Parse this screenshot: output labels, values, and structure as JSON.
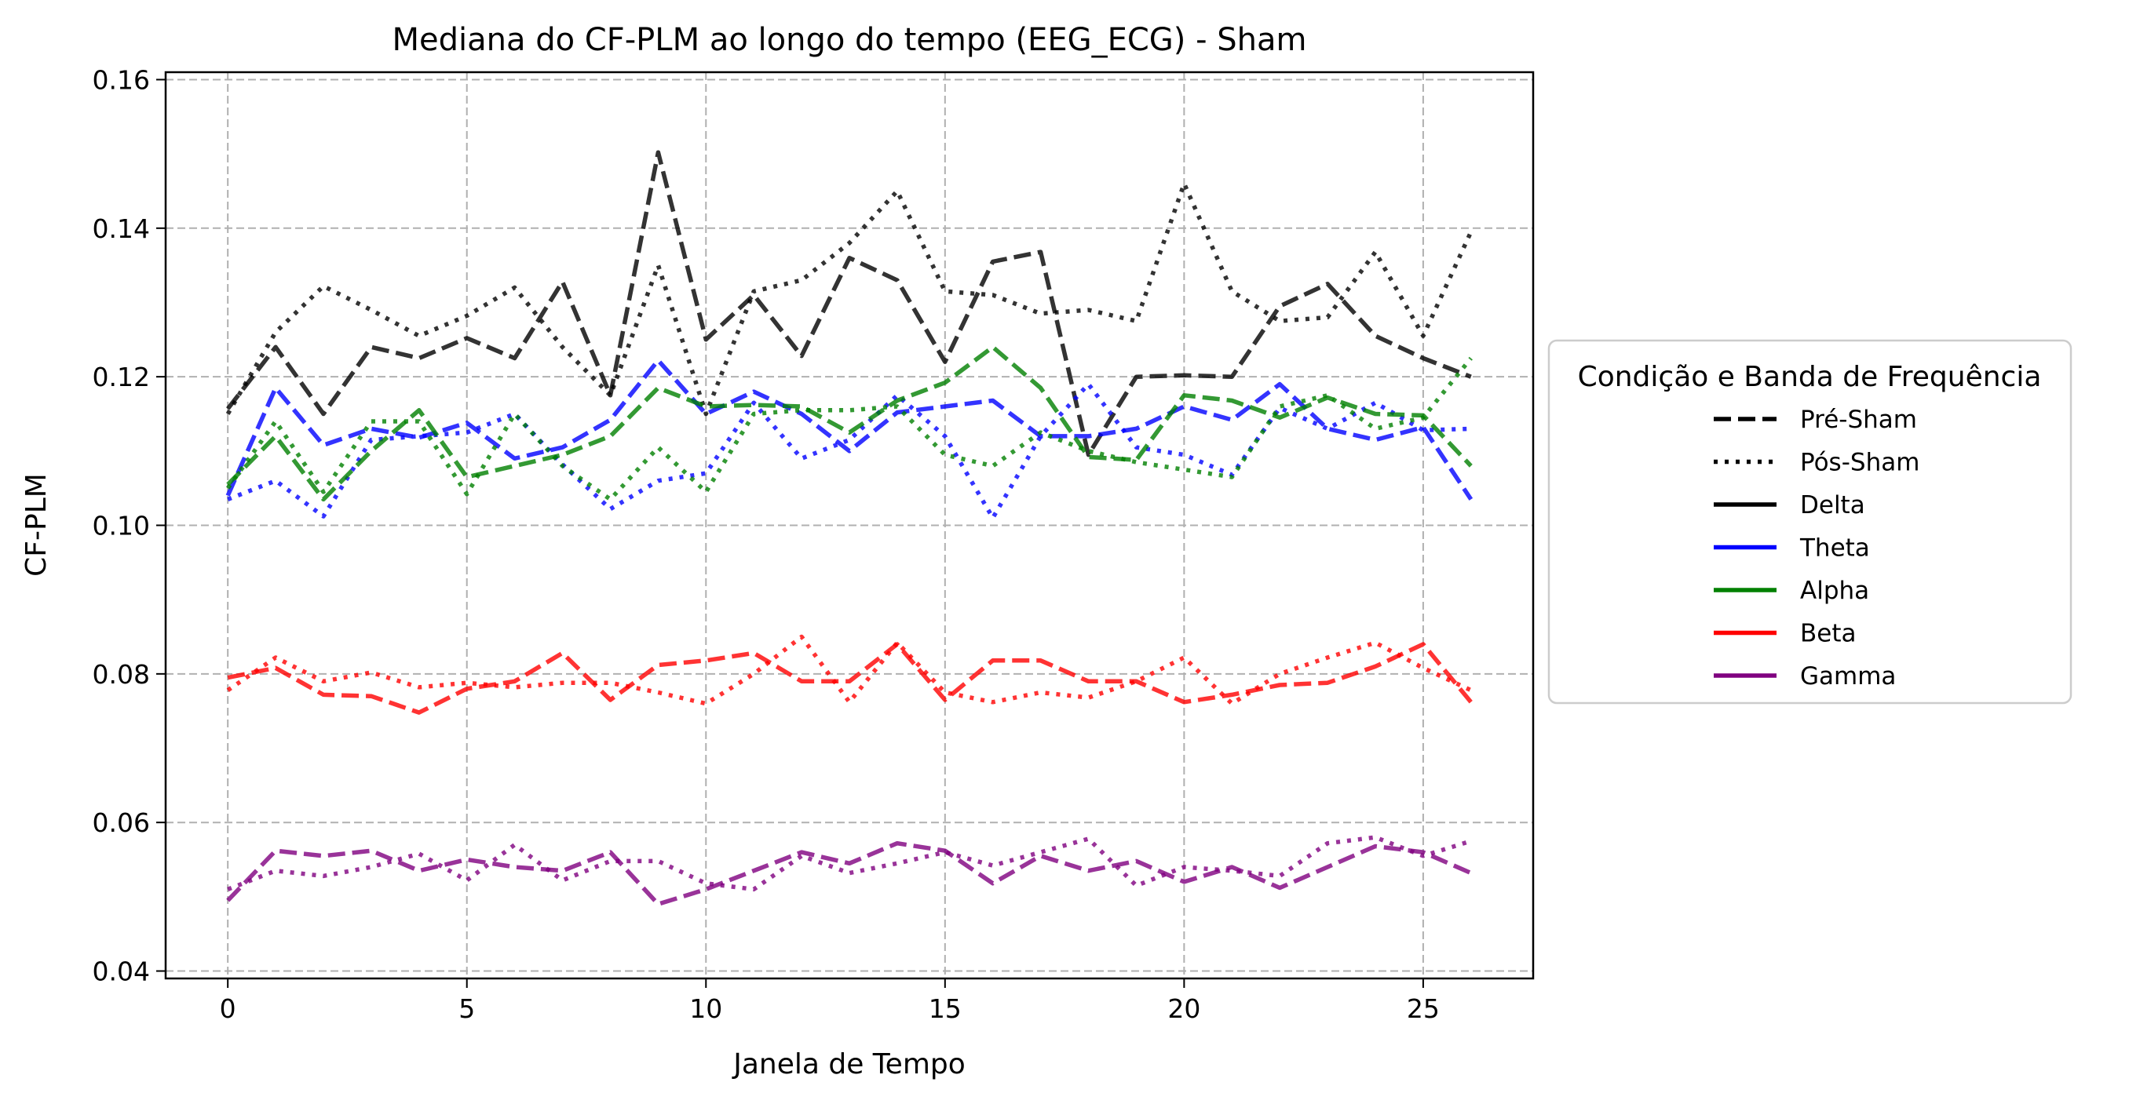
{
  "chart_data": {
    "type": "line",
    "title": "Mediana do CF-PLM ao longo do tempo (EEG_ECG) - Sham",
    "xlabel": "Janela de Tempo",
    "ylabel": "CF-PLM",
    "xlim": [
      -1.3,
      27.3
    ],
    "ylim": [
      0.039,
      0.161
    ],
    "xticks": [
      0,
      5,
      10,
      15,
      20,
      25
    ],
    "yticks": [
      0.04,
      0.06,
      0.08,
      0.1,
      0.12,
      0.14,
      0.16
    ],
    "ytick_labels": [
      "0.04",
      "0.06",
      "0.08",
      "0.10",
      "0.12",
      "0.14",
      "0.16"
    ],
    "grid": true,
    "legend": {
      "title": "Condição e Banda de Frequência",
      "placement": "outside-right",
      "condition_entries": [
        {
          "label": "Pré-Sham",
          "style": "dashed"
        },
        {
          "label": "Pós-Sham",
          "style": "dotted"
        }
      ],
      "band_entries": [
        {
          "label": "Delta",
          "color": "#000000"
        },
        {
          "label": "Theta",
          "color": "#0000ff"
        },
        {
          "label": "Alpha",
          "color": "#008000"
        },
        {
          "label": "Beta",
          "color": "#ff0000"
        },
        {
          "label": "Gamma",
          "color": "#800080"
        }
      ]
    },
    "x": [
      0,
      1,
      2,
      3,
      4,
      5,
      6,
      7,
      8,
      9,
      10,
      11,
      12,
      13,
      14,
      15,
      16,
      17,
      18,
      19,
      20,
      21,
      22,
      23,
      24,
      25,
      26
    ],
    "series": [
      {
        "band": "Delta",
        "condition": "Pré-Sham",
        "color": "#000000",
        "style": "dashed",
        "values": [
          0.1157,
          0.124,
          0.115,
          0.124,
          0.1225,
          0.1252,
          0.1225,
          0.1328,
          0.1175,
          0.1502,
          0.125,
          0.131,
          0.1228,
          0.136,
          0.133,
          0.122,
          0.1355,
          0.1368,
          0.1095,
          0.12,
          0.1202,
          0.12,
          0.1295,
          0.1325,
          0.1255,
          0.1225,
          0.12
        ]
      },
      {
        "band": "Delta",
        "condition": "Pós-Sham",
        "color": "#000000",
        "style": "dotted",
        "values": [
          0.115,
          0.126,
          0.1322,
          0.129,
          0.1255,
          0.1282,
          0.132,
          0.124,
          0.1175,
          0.135,
          0.115,
          0.1315,
          0.133,
          0.138,
          0.145,
          0.1315,
          0.131,
          0.1285,
          0.129,
          0.1275,
          0.146,
          0.1315,
          0.1275,
          0.128,
          0.1368,
          0.1255,
          0.1395
        ]
      },
      {
        "band": "Theta",
        "condition": "Pré-Sham",
        "color": "#0000ff",
        "style": "dashed",
        "values": [
          0.104,
          0.1185,
          0.1108,
          0.113,
          0.1118,
          0.1138,
          0.109,
          0.1105,
          0.1142,
          0.1222,
          0.115,
          0.118,
          0.115,
          0.11,
          0.1152,
          0.116,
          0.1168,
          0.112,
          0.112,
          0.113,
          0.116,
          0.1142,
          0.119,
          0.113,
          0.1115,
          0.1132,
          0.1035
        ]
      },
      {
        "band": "Theta",
        "condition": "Pós-Sham",
        "color": "#0000ff",
        "style": "dotted",
        "values": [
          0.1035,
          0.106,
          0.1012,
          0.1115,
          0.112,
          0.1125,
          0.115,
          0.1082,
          0.1022,
          0.106,
          0.107,
          0.1165,
          0.109,
          0.1115,
          0.1175,
          0.112,
          0.101,
          0.112,
          0.119,
          0.1105,
          0.1095,
          0.1068,
          0.1158,
          0.113,
          0.1165,
          0.1128,
          0.113
        ]
      },
      {
        "band": "Alpha",
        "condition": "Pré-Sham",
        "color": "#008000",
        "style": "dashed",
        "values": [
          0.1055,
          0.112,
          0.1035,
          0.11,
          0.1155,
          0.1065,
          0.108,
          0.1095,
          0.112,
          0.1185,
          0.116,
          0.1162,
          0.116,
          0.1125,
          0.1168,
          0.1192,
          0.124,
          0.1185,
          0.1092,
          0.1088,
          0.1175,
          0.1168,
          0.1145,
          0.1172,
          0.115,
          0.1148,
          0.108
        ]
      },
      {
        "band": "Alpha",
        "condition": "Pós-Sham",
        "color": "#008000",
        "style": "dotted",
        "values": [
          0.105,
          0.114,
          0.1045,
          0.114,
          0.114,
          0.1042,
          0.115,
          0.108,
          0.1035,
          0.1105,
          0.1045,
          0.115,
          0.1155,
          0.1155,
          0.116,
          0.1095,
          0.108,
          0.1125,
          0.11,
          0.1085,
          0.1075,
          0.1065,
          0.116,
          0.1175,
          0.113,
          0.1145,
          0.1225
        ]
      },
      {
        "band": "Beta",
        "condition": "Pré-Sham",
        "color": "#ff0000",
        "style": "dashed",
        "values": [
          0.0795,
          0.0808,
          0.0772,
          0.077,
          0.0748,
          0.078,
          0.079,
          0.0828,
          0.0765,
          0.0812,
          0.0818,
          0.0828,
          0.079,
          0.079,
          0.084,
          0.0765,
          0.0818,
          0.0818,
          0.079,
          0.079,
          0.0762,
          0.0772,
          0.0785,
          0.0788,
          0.081,
          0.084,
          0.0762
        ]
      },
      {
        "band": "Beta",
        "condition": "Pós-Sham",
        "color": "#ff0000",
        "style": "dotted",
        "values": [
          0.0778,
          0.0822,
          0.079,
          0.0802,
          0.0782,
          0.0788,
          0.0782,
          0.0788,
          0.0788,
          0.0775,
          0.076,
          0.08,
          0.085,
          0.0762,
          0.0842,
          0.0775,
          0.0762,
          0.0775,
          0.0768,
          0.079,
          0.0822,
          0.076,
          0.08,
          0.0822,
          0.0842,
          0.0808,
          0.0778
        ]
      },
      {
        "band": "Gamma",
        "condition": "Pré-Sham",
        "color": "#800080",
        "style": "dashed",
        "values": [
          0.0495,
          0.0562,
          0.0555,
          0.0562,
          0.0535,
          0.055,
          0.054,
          0.0535,
          0.056,
          0.049,
          0.051,
          0.0535,
          0.056,
          0.0545,
          0.0572,
          0.0562,
          0.0518,
          0.0555,
          0.0535,
          0.0548,
          0.052,
          0.054,
          0.0512,
          0.054,
          0.0568,
          0.056,
          0.0532
        ]
      },
      {
        "band": "Gamma",
        "condition": "Pós-Sham",
        "color": "#800080",
        "style": "dotted",
        "values": [
          0.051,
          0.0535,
          0.0528,
          0.054,
          0.0558,
          0.0522,
          0.057,
          0.0522,
          0.0548,
          0.0548,
          0.0518,
          0.051,
          0.0555,
          0.0532,
          0.0545,
          0.056,
          0.0542,
          0.056,
          0.0578,
          0.0515,
          0.054,
          0.0535,
          0.0528,
          0.0572,
          0.058,
          0.0555,
          0.0575
        ]
      }
    ]
  }
}
